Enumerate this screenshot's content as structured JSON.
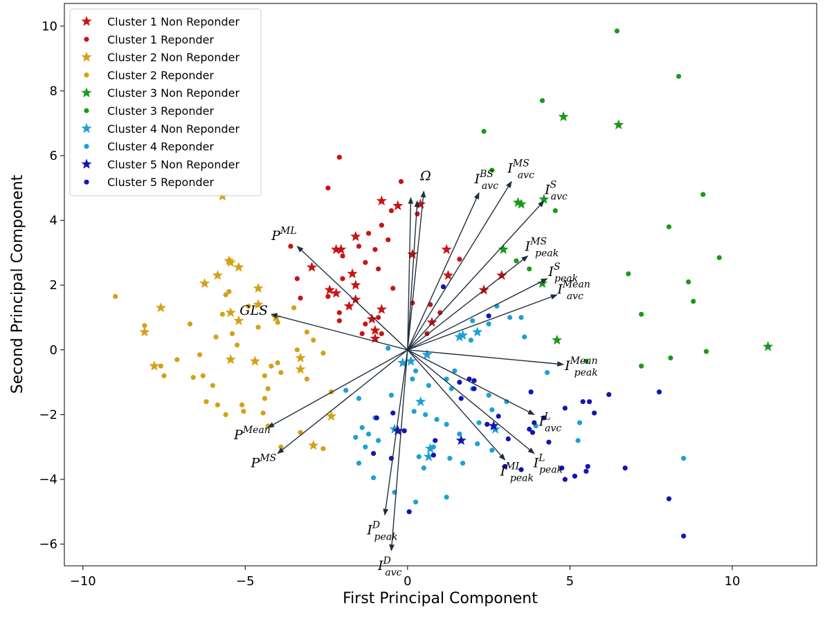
{
  "chart_data": {
    "type": "scatter",
    "xlabel": "First Principal Component",
    "ylabel": "Second Principal Component",
    "xlim": [
      -10.57,
      12.6
    ],
    "ylim": [
      -6.67,
      10.7
    ],
    "xticks": [
      {
        "value": -10,
        "label": "−10"
      },
      {
        "value": -5,
        "label": "−5"
      },
      0,
      5,
      10
    ],
    "yticks": [
      {
        "value": -6,
        "label": "−6"
      },
      {
        "value": -4,
        "label": "−4"
      },
      {
        "value": -2,
        "label": "−2"
      },
      0,
      2,
      4,
      6,
      8,
      10
    ],
    "grid": false,
    "legend": "upper-left",
    "series": [
      {
        "name": "Cluster 1 Non Reponder",
        "color": "#c81414",
        "marker": "star",
        "x": [
          -0.8,
          -0.3,
          0.4,
          -2.2,
          -2.05,
          -1.6,
          -1.7,
          -1.6,
          -2.4,
          -2.2,
          -1.6,
          -1.8,
          -0.8,
          -1.1,
          -1.0,
          -1.0,
          1.2,
          0.15,
          1.25,
          2.9,
          2.35,
          0.75,
          -2.95
        ],
        "y": [
          4.6,
          4.45,
          4.5,
          3.1,
          3.1,
          3.5,
          2.35,
          2.0,
          1.85,
          1.75,
          1.55,
          1.35,
          1.25,
          0.95,
          0.6,
          0.35,
          3.1,
          2.95,
          2.3,
          2.3,
          1.85,
          0.85,
          2.55
        ]
      },
      {
        "name": "Cluster 1 Reponder",
        "color": "#c81414",
        "marker": "circle",
        "x": [
          -2.1,
          -2.45,
          -0.2,
          -0.5,
          -0.8,
          -1.2,
          -0.6,
          -1.5,
          -1.0,
          -3.6,
          -2.0,
          -1.3,
          -0.9,
          -3.4,
          -2.0,
          -2.45,
          -2.1,
          -2.1,
          -1.3,
          -0.45,
          -3.3,
          0.3,
          1.6,
          0.7,
          1.0,
          0.15,
          0.6,
          -1.4,
          -0.9,
          -0.8
        ],
        "y": [
          5.95,
          5.0,
          5.2,
          4.3,
          3.85,
          3.6,
          3.4,
          3.2,
          3.1,
          3.2,
          2.9,
          2.7,
          2.5,
          2.2,
          2.2,
          1.65,
          1.15,
          0.9,
          0.8,
          1.9,
          1.6,
          4.2,
          2.8,
          1.4,
          1.15,
          1.45,
          0.5,
          0.5,
          1.0,
          0.5
        ]
      },
      {
        "name": "Cluster 2 Non Reponder",
        "color": "#d4a017",
        "marker": "star",
        "x": [
          -5.7,
          -5.5,
          -5.45,
          -5.2,
          -5.85,
          -6.25,
          -4.6,
          -4.6,
          -7.6,
          -5.45,
          -4.05,
          -8.1,
          -5.2,
          -7.8,
          -5.45,
          -4.7,
          -3.3,
          -3.3,
          -2.35,
          -2.9
        ],
        "y": [
          4.75,
          2.75,
          2.7,
          2.55,
          2.3,
          2.05,
          1.9,
          1.4,
          1.3,
          1.15,
          1.0,
          0.55,
          0.9,
          -0.5,
          -0.3,
          -0.35,
          -0.25,
          -0.6,
          -2.05,
          -2.95
        ]
      },
      {
        "name": "Cluster 2 Reponder",
        "color": "#d4a017",
        "marker": "circle",
        "x": [
          -9.0,
          -8.1,
          -7.6,
          -7.5,
          -7.1,
          -6.7,
          -6.4,
          -6.3,
          -6.2,
          -6.0,
          -5.9,
          -5.7,
          -5.6,
          -5.5,
          -5.4,
          -5.25,
          -5.1,
          -5.05,
          -4.9,
          -4.6,
          -4.4,
          -4.4,
          -4.3,
          -4.2,
          -4.0,
          -4.0,
          -3.9,
          -3.5,
          -3.1,
          -3.4,
          -3.1,
          -2.9,
          -2.6,
          -2.35,
          -3.3,
          -2.6,
          -3.9,
          -4.3,
          -5.6,
          -5.85,
          -4.45,
          -6.6
        ],
        "y": [
          1.65,
          0.75,
          -0.5,
          -0.8,
          -0.3,
          0.8,
          -0.15,
          -0.8,
          -1.6,
          -1.1,
          0.4,
          1.1,
          1.7,
          1.8,
          0.5,
          0.15,
          -1.7,
          -1.9,
          1.35,
          0.7,
          -0.8,
          -1.5,
          -1.2,
          -0.5,
          0.85,
          -0.4,
          -0.7,
          1.3,
          0.55,
          0.0,
          -0.9,
          0.3,
          -0.1,
          -1.3,
          -2.55,
          -3.05,
          -3.0,
          -2.35,
          -2.0,
          -1.7,
          -1.95,
          -0.85
        ]
      },
      {
        "name": "Cluster 3 Non Reponder",
        "color": "#1a9a1a",
        "marker": "star",
        "x": [
          4.8,
          6.5,
          3.4,
          3.5,
          4.2,
          2.95,
          4.15,
          4.6,
          11.1
        ],
        "y": [
          7.2,
          6.95,
          4.55,
          4.5,
          4.65,
          3.1,
          2.05,
          0.3,
          0.1
        ]
      },
      {
        "name": "Cluster 3 Reponder",
        "color": "#1a9a1a",
        "marker": "circle",
        "x": [
          6.45,
          8.35,
          4.15,
          2.35,
          2.6,
          9.1,
          4.55,
          8.05,
          9.6,
          6.8,
          3.35,
          3.75,
          8.65,
          8.8,
          7.2,
          5.5,
          7.2,
          8.1,
          9.2
        ],
        "y": [
          9.85,
          8.45,
          7.7,
          6.75,
          5.55,
          4.8,
          4.3,
          3.8,
          2.85,
          2.35,
          2.75,
          2.5,
          2.1,
          1.5,
          1.1,
          -0.35,
          -0.5,
          -0.25,
          -0.05
        ]
      },
      {
        "name": "Cluster 4 Non Reponder",
        "color": "#1ea0d2",
        "marker": "star",
        "x": [
          1.6,
          1.7,
          2.15,
          0.6,
          -0.15,
          0.1,
          0.4,
          -0.4,
          0.7,
          0.65,
          2.7
        ],
        "y": [
          0.4,
          0.45,
          0.55,
          -0.15,
          -0.4,
          -0.35,
          -1.6,
          -2.45,
          -3.05,
          -3.3,
          -2.45
        ]
      },
      {
        "name": "Cluster 4 Reponder",
        "color": "#1ea0d2",
        "marker": "circle",
        "x": [
          2.75,
          3.15,
          2.0,
          2.5,
          3.5,
          1.95,
          3.6,
          4.3,
          -0.6,
          1.45,
          0.25,
          0.15,
          0.65,
          1.2,
          1.35,
          2.0,
          2.5,
          3.05,
          -0.5,
          -1.5,
          -1.9,
          0.55,
          -1.0,
          -1.4,
          -1.6,
          -1.2,
          -0.9,
          -1.3,
          -1.5,
          -1.05,
          0.2,
          0.9,
          1.2,
          2.2,
          1.6,
          2.15,
          2.6,
          0.35,
          0.5,
          1.3,
          1.7,
          1.2,
          0.8,
          0.25,
          -0.4,
          5.3,
          5.25,
          8.5,
          3.95,
          2.6
        ],
        "y": [
          1.35,
          1.0,
          0.9,
          0.8,
          1.0,
          0.3,
          0.4,
          -0.7,
          0.05,
          -0.65,
          -0.65,
          -0.9,
          -1.1,
          -0.9,
          -1.2,
          -1.2,
          -1.4,
          -1.6,
          -1.4,
          -1.5,
          -1.25,
          -2.0,
          -2.1,
          -2.4,
          -2.7,
          -2.6,
          -2.8,
          -3.0,
          -3.5,
          -3.95,
          -1.9,
          -2.15,
          -2.3,
          -2.25,
          -2.6,
          -2.9,
          -3.1,
          -3.3,
          -3.65,
          -3.35,
          -3.5,
          -4.55,
          -3.0,
          -4.7,
          -4.4,
          -2.25,
          -2.8,
          -3.35,
          -2.35,
          -1.85
        ]
      },
      {
        "name": "Cluster 5 Non Reponder",
        "color": "#1414b4",
        "marker": "star",
        "x": [
          1.65,
          2.65,
          -0.3
        ],
        "y": [
          -2.8,
          -2.35,
          -2.5
        ]
      },
      {
        "name": "Cluster 5 Reponder",
        "color": "#1414b4",
        "marker": "circle",
        "x": [
          1.1,
          2.5,
          1.9,
          2.05,
          1.6,
          2.05,
          1.65,
          2.8,
          3.8,
          3.9,
          3.85,
          3.75,
          4.2,
          5.4,
          5.6,
          5.75,
          6.2,
          7.75,
          4.85,
          2.45,
          3.1,
          4.35,
          3.0,
          3.5,
          4.75,
          4.85,
          5.15,
          5.5,
          5.55,
          6.7,
          8.05,
          8.5,
          0.05,
          -0.45,
          -0.95,
          -1.05,
          -0.5,
          0.85,
          0.8,
          -0.1
        ],
        "y": [
          1.95,
          1.05,
          -0.9,
          -0.95,
          -1.0,
          -1.2,
          -1.5,
          -2.05,
          -1.3,
          -2.25,
          -2.55,
          -2.45,
          -2.1,
          -1.6,
          -1.6,
          -1.95,
          -1.38,
          -1.3,
          -1.8,
          -2.3,
          -2.75,
          -2.85,
          -3.6,
          -3.7,
          -3.65,
          -4.0,
          -3.9,
          -3.75,
          -3.6,
          -3.65,
          -4.6,
          -5.75,
          -5.0,
          -1.95,
          -2.1,
          -3.2,
          -3.35,
          -2.8,
          -3.25,
          -2.5
        ]
      }
    ],
    "loadings": [
      {
        "x": 0.5,
        "y": 4.9,
        "label": {
          "base": "Ω"
        }
      },
      {
        "x": 0.1,
        "y": 4.7
      },
      {
        "x": 0.3,
        "y": 4.6
      },
      {
        "x": 2.2,
        "y": 4.85,
        "label": {
          "base": "I",
          "sup": "BS",
          "sub": "avc"
        }
      },
      {
        "x": 3.2,
        "y": 5.2,
        "label": {
          "base": "I",
          "sup": "MS",
          "sub": "avc"
        }
      },
      {
        "x": 4.2,
        "y": 4.6,
        "label": {
          "base": "I",
          "sup": "S",
          "sub": "avc"
        }
      },
      {
        "x": 3.7,
        "y": 2.9,
        "label": {
          "base": "I",
          "sup": "MS",
          "sub": "peak"
        }
      },
      {
        "x": 4.3,
        "y": 2.2,
        "label": {
          "base": "I",
          "sup": "S",
          "sub": "peak"
        }
      },
      {
        "x": 4.6,
        "y": 1.7,
        "label": {
          "base": "I",
          "sup": "Mean",
          "sub": "avc"
        }
      },
      {
        "x": 4.8,
        "y": -0.45,
        "label": {
          "base": "I",
          "sup": "Mean",
          "sub": "peak"
        }
      },
      {
        "x": 3.9,
        "y": -2.0,
        "label": {
          "base": "I",
          "sup": "L",
          "sub": "avc"
        }
      },
      {
        "x": 3.9,
        "y": -3.2,
        "label": {
          "base": "I",
          "sup": "L",
          "sub": "peak"
        }
      },
      {
        "x": 3.0,
        "y": -3.4,
        "label": {
          "base": "I",
          "sup": "ML",
          "sub": "peak"
        }
      },
      {
        "x": -0.7,
        "y": -5.1,
        "label": {
          "base": "I",
          "sup": "D",
          "sub": "peak"
        }
      },
      {
        "x": -0.5,
        "y": -6.2,
        "label": {
          "base": "I",
          "sup": "D",
          "sub": "avc"
        }
      },
      {
        "x": -4.3,
        "y": -2.4,
        "label": {
          "base": "P",
          "sup": "Mean"
        }
      },
      {
        "x": -4.0,
        "y": -3.2,
        "label": {
          "base": "P",
          "sup": "MS"
        }
      },
      {
        "x": -4.2,
        "y": 1.1,
        "label": {
          "base": "GLS"
        }
      },
      {
        "x": -3.4,
        "y": 3.2,
        "label": {
          "base": "P",
          "sup": "ML"
        }
      }
    ]
  }
}
